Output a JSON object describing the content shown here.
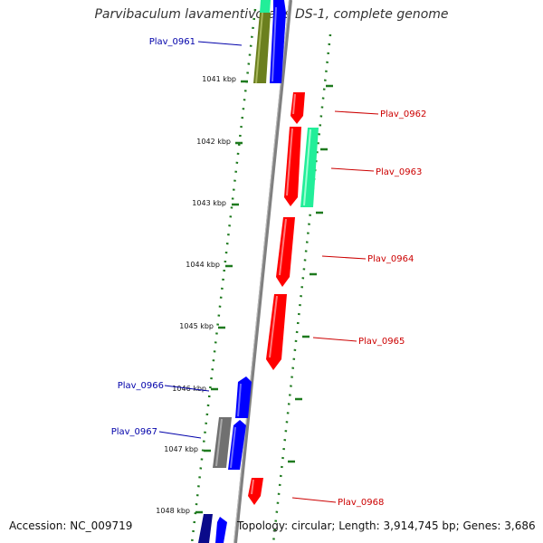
{
  "title": "Parvibaculum lavamentivorans DS-1, complete genome",
  "footer": {
    "accession": "Accession: NC_009719",
    "topology": "Topology: circular; Length: 3,914,745 bp; Genes: 3,686"
  },
  "colors": {
    "backbone": "#808080",
    "tick": "#1e7a1e",
    "strand_plus_label": "#cc0000",
    "strand_minus_label": "#0000aa",
    "gene_red": "#ff0000",
    "gene_blue": "#0000ff",
    "gene_green": "#22ee99",
    "gene_olive": "#6b7f1e",
    "gene_gray": "#707070"
  },
  "scale_labels": [
    "1041 kbp",
    "1042 kbp",
    "1043 kbp",
    "1044 kbp",
    "1045 kbp",
    "1046 kbp",
    "1047 kbp",
    "1048 kbp"
  ],
  "gene_labels": {
    "minus": [
      "Plav_0961",
      "Plav_0966",
      "Plav_0967"
    ],
    "plus": [
      "Plav_0962",
      "Plav_0963",
      "Plav_0964",
      "Plav_0965",
      "Plav_0968"
    ]
  }
}
